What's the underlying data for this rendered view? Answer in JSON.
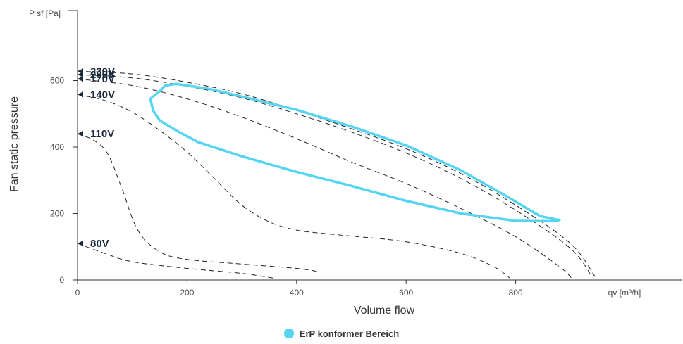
{
  "chart_data": {
    "type": "line",
    "ylabel_top": "P sf [Pa]",
    "ylabel": "Fan static pressure",
    "xlabel": "Volume flow",
    "xunit": "qv [m³/h]",
    "xlim": [
      0,
      1100
    ],
    "ylim": [
      0,
      800
    ],
    "xticks": [
      "0",
      "200",
      "400",
      "600",
      "800"
    ],
    "yticks": [
      "0",
      "200",
      "400",
      "600"
    ],
    "grid": false,
    "legend": {
      "position": "bottom-center",
      "entries": [
        {
          "label": "ErP konformer Bereich",
          "color": "#55d5f2"
        }
      ]
    },
    "curves": [
      {
        "label": "230V",
        "points": [
          [
            0,
            628
          ],
          [
            100,
            620
          ],
          [
            200,
            595
          ],
          [
            300,
            560
          ],
          [
            400,
            510
          ],
          [
            500,
            455
          ],
          [
            600,
            395
          ],
          [
            700,
            320
          ],
          [
            800,
            225
          ],
          [
            900,
            110
          ],
          [
            945,
            10
          ]
        ]
      },
      {
        "label": "200V",
        "points": [
          [
            0,
            618
          ],
          [
            100,
            608
          ],
          [
            200,
            583
          ],
          [
            300,
            548
          ],
          [
            400,
            500
          ],
          [
            500,
            445
          ],
          [
            600,
            382
          ],
          [
            700,
            305
          ],
          [
            800,
            210
          ],
          [
            900,
            95
          ],
          [
            940,
            8
          ]
        ]
      },
      {
        "label": "170V",
        "points": [
          [
            0,
            605
          ],
          [
            100,
            585
          ],
          [
            200,
            545
          ],
          [
            300,
            490
          ],
          [
            400,
            425
          ],
          [
            500,
            355
          ],
          [
            600,
            290
          ],
          [
            700,
            215
          ],
          [
            800,
            130
          ],
          [
            880,
            40
          ],
          [
            905,
            0
          ]
        ]
      },
      {
        "label": "140V",
        "points": [
          [
            0,
            558
          ],
          [
            50,
            540
          ],
          [
            100,
            505
          ],
          [
            150,
            450
          ],
          [
            200,
            385
          ],
          [
            250,
            305
          ],
          [
            300,
            225
          ],
          [
            350,
            175
          ],
          [
            400,
            150
          ],
          [
            450,
            140
          ],
          [
            500,
            132
          ],
          [
            600,
            115
          ],
          [
            700,
            80
          ],
          [
            760,
            40
          ],
          [
            790,
            5
          ]
        ]
      },
      {
        "label": "110V",
        "points": [
          [
            0,
            440
          ],
          [
            30,
            420
          ],
          [
            55,
            380
          ],
          [
            80,
            280
          ],
          [
            110,
            150
          ],
          [
            150,
            85
          ],
          [
            200,
            62
          ],
          [
            300,
            48
          ],
          [
            400,
            35
          ],
          [
            440,
            25
          ]
        ]
      },
      {
        "label": "80V",
        "points": [
          [
            0,
            110
          ],
          [
            50,
            80
          ],
          [
            100,
            55
          ],
          [
            200,
            35
          ],
          [
            300,
            20
          ],
          [
            360,
            5
          ]
        ]
      }
    ],
    "erp_region": {
      "label": "ErP konformer Bereich",
      "color": "#55d5f2",
      "points": [
        [
          133,
          545
        ],
        [
          150,
          568
        ],
        [
          160,
          585
        ],
        [
          180,
          590
        ],
        [
          240,
          575
        ],
        [
          300,
          552
        ],
        [
          400,
          512
        ],
        [
          500,
          462
        ],
        [
          600,
          405
        ],
        [
          700,
          330
        ],
        [
          780,
          255
        ],
        [
          845,
          192
        ],
        [
          880,
          180
        ],
        [
          860,
          177
        ],
        [
          800,
          178
        ],
        [
          700,
          200
        ],
        [
          600,
          238
        ],
        [
          500,
          283
        ],
        [
          400,
          325
        ],
        [
          300,
          372
        ],
        [
          220,
          415
        ],
        [
          180,
          450
        ],
        [
          150,
          480
        ],
        [
          138,
          510
        ],
        [
          133,
          545
        ]
      ]
    }
  }
}
